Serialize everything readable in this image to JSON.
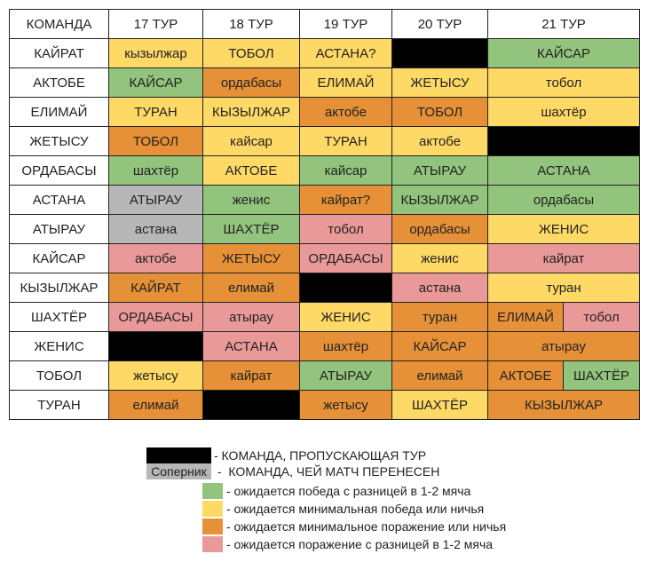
{
  "colors": {
    "G": "#93c47d",
    "Y": "#ffd966",
    "O": "#e69138",
    "P": "#ea9999",
    "S": "#b7b7b7",
    "B": "#000000"
  },
  "header": [
    "КОМАНДА",
    "17 ТУР",
    "18 ТУР",
    "19 ТУР",
    "20 ТУР",
    "21 ТУР"
  ],
  "rows": [
    {
      "team": "КАЙРАТ",
      "cells": [
        [
          "кызылжар",
          "Y"
        ],
        [
          "ТОБОЛ",
          "Y"
        ],
        [
          "АСТАНА?",
          "Y"
        ],
        [
          "",
          "B"
        ],
        [
          "КАЙСАР",
          "G"
        ]
      ]
    },
    {
      "team": "АКТОБЕ",
      "cells": [
        [
          "КАЙСАР",
          "G"
        ],
        [
          "ордабасы",
          "O"
        ],
        [
          "ЕЛИМАЙ",
          "Y"
        ],
        [
          "ЖЕТЫСУ",
          "Y"
        ],
        [
          "тобол",
          "Y"
        ]
      ]
    },
    {
      "team": "ЕЛИМАЙ",
      "cells": [
        [
          "ТУРАН",
          "Y"
        ],
        [
          "КЫЗЫЛЖАР",
          "Y"
        ],
        [
          "актобе",
          "O"
        ],
        [
          "ТОБОЛ",
          "O"
        ],
        [
          "шахтёр",
          "Y"
        ]
      ]
    },
    {
      "team": "ЖЕТЫСУ",
      "cells": [
        [
          "ТОБОЛ",
          "O"
        ],
        [
          "кайсар",
          "Y"
        ],
        [
          "ТУРАН",
          "Y"
        ],
        [
          "актобе",
          "Y"
        ],
        [
          "",
          "B"
        ]
      ]
    },
    {
      "team": "ОРДАБАСЫ",
      "cells": [
        [
          "шахтёр",
          "G"
        ],
        [
          "АКТОБЕ",
          "Y"
        ],
        [
          "кайсар",
          "G"
        ],
        [
          "АТЫРАУ",
          "G"
        ],
        [
          "АСТАНА",
          "G"
        ]
      ]
    },
    {
      "team": "АСТАНА",
      "cells": [
        [
          "АТЫРАУ",
          "S"
        ],
        [
          "женис",
          "G"
        ],
        [
          "кайрат?",
          "O"
        ],
        [
          "КЫЗЫЛЖАР",
          "G"
        ],
        [
          "ордабасы",
          "G"
        ]
      ]
    },
    {
      "team": "АТЫРАУ",
      "cells": [
        [
          "астана",
          "S"
        ],
        [
          "ШАХТЁР",
          "G"
        ],
        [
          "тобол",
          "P"
        ],
        [
          "ордабасы",
          "O"
        ],
        [
          "ЖЕНИС",
          "Y"
        ]
      ]
    },
    {
      "team": "КАЙСАР",
      "cells": [
        [
          "актобе",
          "P"
        ],
        [
          "ЖЕТЫСУ",
          "O"
        ],
        [
          "ОРДАБАСЫ",
          "P"
        ],
        [
          "женис",
          "Y"
        ],
        [
          "кайрат",
          "P"
        ]
      ]
    },
    {
      "team": "КЫЗЫЛЖАР",
      "cells": [
        [
          "КАЙРАТ",
          "O"
        ],
        [
          "елимай",
          "O"
        ],
        [
          "",
          "B"
        ],
        [
          "астана",
          "P"
        ],
        [
          "туран",
          "Y"
        ]
      ]
    },
    {
      "team": "ШАХТЁР",
      "cells": [
        [
          "ОРДАБАСЫ",
          "P"
        ],
        [
          "атырау",
          "P"
        ],
        [
          "ЖЕНИС",
          "Y"
        ],
        [
          "туран",
          "O"
        ],
        [
          "ЕЛИМАЙ",
          "O"
        ],
        [
          "тобол",
          "P"
        ]
      ]
    },
    {
      "team": "ЖЕНИС",
      "cells": [
        [
          "",
          "B"
        ],
        [
          "АСТАНА",
          "P"
        ],
        [
          "шахтёр",
          "O"
        ],
        [
          "КАЙСАР",
          "O"
        ],
        [
          "атырау",
          "O"
        ]
      ]
    },
    {
      "team": "ТОБОЛ",
      "cells": [
        [
          "жетысу",
          "Y"
        ],
        [
          "кайрат",
          "O"
        ],
        [
          "АТЫРАУ",
          "G"
        ],
        [
          "елимай",
          "O"
        ],
        [
          "АКТОБЕ",
          "O"
        ],
        [
          "ШАХТЁР",
          "G"
        ]
      ]
    },
    {
      "team": "ТУРАН",
      "cells": [
        [
          "елимай",
          "O"
        ],
        [
          "",
          "B"
        ],
        [
          "жетысу",
          "O"
        ],
        [
          "ШАХТЁР",
          "Y"
        ],
        [
          "КЫЗЫЛЖАР",
          "O"
        ]
      ]
    }
  ],
  "legend": {
    "bye": "- КОМАНДА, ПРОПУСКАЮЩАЯ ТУР",
    "postponed_box": "Соперник",
    "postponed": " -  КОМАНДА, ЧЕЙ МАТЧ ПЕРЕНЕСЕН",
    "green": "- ожидается победа с разницей в 1-2 мяча",
    "yellow": "- ожидается минимальная победа или ничья",
    "orange": "- ожидается минимальное поражение или ничья",
    "pink": "- ожидается поражение с разницей в 1-2 мяча"
  }
}
